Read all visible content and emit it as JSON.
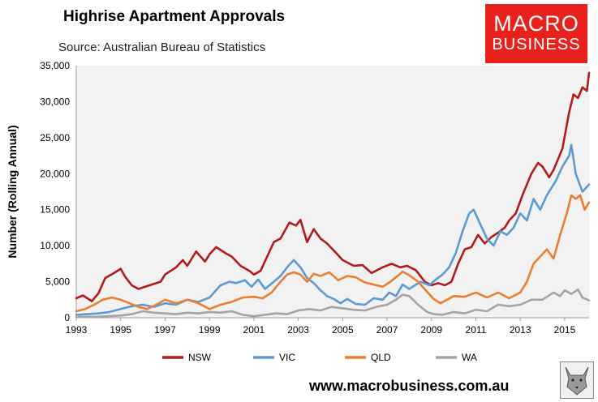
{
  "header": {
    "title": "Highrise Apartment Approvals",
    "subtitle": "Source: Australian Bureau of Statistics"
  },
  "logo": {
    "line1": "MACRO",
    "line2": "BUSINESS"
  },
  "footer": {
    "url": "www.macrobusiness.com.au"
  },
  "colors": {
    "NSW": "#b21a1c",
    "VIC": "#5b9bd5",
    "QLD": "#ed7d31",
    "WA": "#a5a5a5",
    "plot_bg": "#f2f2f2"
  },
  "chart_data": {
    "type": "line",
    "title": "Highrise Apartment Approvals",
    "subtitle": "Source: Australian Bureau of Statistics",
    "ylabel": "Number (Rolling Annual)",
    "xlabel": "",
    "xlim": [
      1993,
      2016.1
    ],
    "ylim": [
      0,
      35000
    ],
    "x_ticks": [
      "1993",
      "1995",
      "1997",
      "1999",
      "2001",
      "2003",
      "2005",
      "2007",
      "2009",
      "2011",
      "2013",
      "2015"
    ],
    "y_ticks": [
      "0",
      "5,000",
      "10,000",
      "15,000",
      "20,000",
      "25,000",
      "30,000",
      "35,000"
    ],
    "grid": false,
    "legend_position": "bottom",
    "series": [
      {
        "name": "NSW",
        "points": [
          [
            1993.0,
            2700
          ],
          [
            1993.3,
            3100
          ],
          [
            1993.7,
            2300
          ],
          [
            1994.0,
            3400
          ],
          [
            1994.3,
            5500
          ],
          [
            1994.7,
            6200
          ],
          [
            1995.0,
            6800
          ],
          [
            1995.2,
            5700
          ],
          [
            1995.5,
            4500
          ],
          [
            1995.8,
            4000
          ],
          [
            1996.3,
            4500
          ],
          [
            1996.8,
            5000
          ],
          [
            1997.0,
            6000
          ],
          [
            1997.5,
            7000
          ],
          [
            1997.8,
            8000
          ],
          [
            1998.0,
            7200
          ],
          [
            1998.4,
            9200
          ],
          [
            1998.8,
            7800
          ],
          [
            1999.0,
            8800
          ],
          [
            1999.3,
            9800
          ],
          [
            1999.7,
            9000
          ],
          [
            2000.0,
            8500
          ],
          [
            2000.4,
            7200
          ],
          [
            2000.8,
            6500
          ],
          [
            2001.0,
            6000
          ],
          [
            2001.3,
            6500
          ],
          [
            2001.6,
            8500
          ],
          [
            2001.9,
            10500
          ],
          [
            2002.2,
            11000
          ],
          [
            2002.6,
            13200
          ],
          [
            2002.9,
            12800
          ],
          [
            2003.1,
            13600
          ],
          [
            2003.4,
            10500
          ],
          [
            2003.7,
            12300
          ],
          [
            2004.0,
            11000
          ],
          [
            2004.3,
            10300
          ],
          [
            2004.7,
            9000
          ],
          [
            2005.0,
            8000
          ],
          [
            2005.5,
            7200
          ],
          [
            2005.9,
            7300
          ],
          [
            2006.3,
            6200
          ],
          [
            2006.8,
            7000
          ],
          [
            2007.2,
            7500
          ],
          [
            2007.6,
            7000
          ],
          [
            2007.9,
            7200
          ],
          [
            2008.3,
            6600
          ],
          [
            2008.7,
            5000
          ],
          [
            2009.0,
            4500
          ],
          [
            2009.3,
            4800
          ],
          [
            2009.6,
            4500
          ],
          [
            2009.9,
            5000
          ],
          [
            2010.2,
            7500
          ],
          [
            2010.5,
            9500
          ],
          [
            2010.8,
            9800
          ],
          [
            2011.1,
            11500
          ],
          [
            2011.4,
            10300
          ],
          [
            2011.7,
            11200
          ],
          [
            2012.0,
            11800
          ],
          [
            2012.3,
            12500
          ],
          [
            2012.5,
            13500
          ],
          [
            2012.8,
            14500
          ],
          [
            2013.1,
            17000
          ],
          [
            2013.5,
            20000
          ],
          [
            2013.8,
            21500
          ],
          [
            2014.0,
            21000
          ],
          [
            2014.3,
            19500
          ],
          [
            2014.5,
            20500
          ],
          [
            2014.9,
            23500
          ],
          [
            2015.2,
            28500
          ],
          [
            2015.4,
            31000
          ],
          [
            2015.6,
            30500
          ],
          [
            2015.8,
            32000
          ],
          [
            2016.0,
            31500
          ],
          [
            2016.1,
            34000
          ]
        ]
      },
      {
        "name": "VIC",
        "points": [
          [
            1993.0,
            400
          ],
          [
            1993.5,
            500
          ],
          [
            1994.0,
            600
          ],
          [
            1994.5,
            800
          ],
          [
            1995.0,
            1200
          ],
          [
            1995.5,
            1600
          ],
          [
            1996.0,
            1800
          ],
          [
            1996.5,
            1500
          ],
          [
            1997.0,
            2000
          ],
          [
            1997.5,
            1800
          ],
          [
            1998.0,
            2500
          ],
          [
            1998.5,
            2200
          ],
          [
            1999.0,
            2800
          ],
          [
            1999.5,
            4500
          ],
          [
            1999.9,
            5000
          ],
          [
            2000.2,
            4800
          ],
          [
            2000.6,
            5200
          ],
          [
            2000.9,
            4300
          ],
          [
            2001.2,
            5300
          ],
          [
            2001.5,
            4000
          ],
          [
            2001.9,
            5000
          ],
          [
            2002.2,
            5800
          ],
          [
            2002.5,
            7000
          ],
          [
            2002.8,
            8000
          ],
          [
            2003.1,
            7000
          ],
          [
            2003.4,
            5500
          ],
          [
            2003.7,
            4800
          ],
          [
            2004.0,
            3800
          ],
          [
            2004.3,
            3000
          ],
          [
            2004.6,
            2600
          ],
          [
            2004.9,
            2000
          ],
          [
            2005.2,
            2600
          ],
          [
            2005.6,
            1900
          ],
          [
            2006.0,
            1800
          ],
          [
            2006.4,
            2700
          ],
          [
            2006.8,
            2500
          ],
          [
            2007.1,
            3500
          ],
          [
            2007.4,
            3000
          ],
          [
            2007.7,
            4600
          ],
          [
            2008.0,
            4000
          ],
          [
            2008.5,
            5000
          ],
          [
            2008.9,
            4500
          ],
          [
            2009.2,
            5300
          ],
          [
            2009.5,
            6000
          ],
          [
            2009.8,
            7000
          ],
          [
            2010.1,
            9000
          ],
          [
            2010.4,
            12000
          ],
          [
            2010.7,
            14500
          ],
          [
            2010.9,
            15000
          ],
          [
            2011.2,
            13000
          ],
          [
            2011.5,
            11000
          ],
          [
            2011.8,
            10000
          ],
          [
            2012.1,
            12000
          ],
          [
            2012.4,
            11500
          ],
          [
            2012.7,
            12500
          ],
          [
            2013.0,
            14500
          ],
          [
            2013.3,
            13500
          ],
          [
            2013.6,
            16500
          ],
          [
            2013.9,
            15000
          ],
          [
            2014.2,
            17000
          ],
          [
            2014.6,
            19000
          ],
          [
            2014.9,
            21000
          ],
          [
            2015.2,
            22500
          ],
          [
            2015.3,
            24000
          ],
          [
            2015.5,
            20000
          ],
          [
            2015.8,
            17500
          ],
          [
            2016.1,
            18500
          ]
        ]
      },
      {
        "name": "QLD",
        "points": [
          [
            1993.0,
            900
          ],
          [
            1993.4,
            1200
          ],
          [
            1993.8,
            1800
          ],
          [
            1994.2,
            2500
          ],
          [
            1994.6,
            2800
          ],
          [
            1995.0,
            2500
          ],
          [
            1995.4,
            2000
          ],
          [
            1995.8,
            1500
          ],
          [
            1996.2,
            1200
          ],
          [
            1996.6,
            1800
          ],
          [
            1997.0,
            2500
          ],
          [
            1997.5,
            2000
          ],
          [
            1998.0,
            2500
          ],
          [
            1998.5,
            2000
          ],
          [
            1999.0,
            1200
          ],
          [
            1999.5,
            1800
          ],
          [
            2000.0,
            2200
          ],
          [
            2000.5,
            2800
          ],
          [
            2001.0,
            2900
          ],
          [
            2001.4,
            2700
          ],
          [
            2001.8,
            3500
          ],
          [
            2002.2,
            5000
          ],
          [
            2002.5,
            6000
          ],
          [
            2002.8,
            6300
          ],
          [
            2003.1,
            6000
          ],
          [
            2003.4,
            5000
          ],
          [
            2003.7,
            6100
          ],
          [
            2004.0,
            5800
          ],
          [
            2004.4,
            6300
          ],
          [
            2004.8,
            5200
          ],
          [
            2005.2,
            5800
          ],
          [
            2005.6,
            5600
          ],
          [
            2006.0,
            4900
          ],
          [
            2006.4,
            4600
          ],
          [
            2006.8,
            4300
          ],
          [
            2007.1,
            4900
          ],
          [
            2007.4,
            5600
          ],
          [
            2007.7,
            6400
          ],
          [
            2008.0,
            5900
          ],
          [
            2008.4,
            5000
          ],
          [
            2008.8,
            3600
          ],
          [
            2009.1,
            2600
          ],
          [
            2009.4,
            2000
          ],
          [
            2009.7,
            2500
          ],
          [
            2010.0,
            3000
          ],
          [
            2010.5,
            2900
          ],
          [
            2011.0,
            3500
          ],
          [
            2011.5,
            2800
          ],
          [
            2012.0,
            3500
          ],
          [
            2012.5,
            2700
          ],
          [
            2013.0,
            3500
          ],
          [
            2013.3,
            5000
          ],
          [
            2013.6,
            7500
          ],
          [
            2013.9,
            8500
          ],
          [
            2014.2,
            9500
          ],
          [
            2014.5,
            8200
          ],
          [
            2014.8,
            11500
          ],
          [
            2015.1,
            14500
          ],
          [
            2015.3,
            17000
          ],
          [
            2015.5,
            16500
          ],
          [
            2015.7,
            17000
          ],
          [
            2015.9,
            15000
          ],
          [
            2016.1,
            16000
          ]
        ]
      },
      {
        "name": "WA",
        "points": [
          [
            1993.0,
            100
          ],
          [
            1994.0,
            150
          ],
          [
            1995.0,
            300
          ],
          [
            1995.5,
            500
          ],
          [
            1996.0,
            900
          ],
          [
            1996.5,
            700
          ],
          [
            1997.0,
            600
          ],
          [
            1997.5,
            500
          ],
          [
            1998.0,
            700
          ],
          [
            1998.5,
            600
          ],
          [
            1999.0,
            800
          ],
          [
            1999.5,
            700
          ],
          [
            2000.0,
            900
          ],
          [
            2000.5,
            400
          ],
          [
            2001.0,
            200
          ],
          [
            2001.5,
            400
          ],
          [
            2002.0,
            600
          ],
          [
            2002.5,
            500
          ],
          [
            2003.0,
            1000
          ],
          [
            2003.5,
            1200
          ],
          [
            2004.0,
            1000
          ],
          [
            2004.5,
            1500
          ],
          [
            2005.0,
            1300
          ],
          [
            2005.5,
            1100
          ],
          [
            2006.0,
            1000
          ],
          [
            2006.5,
            1500
          ],
          [
            2007.0,
            1800
          ],
          [
            2007.4,
            2500
          ],
          [
            2007.7,
            3200
          ],
          [
            2008.0,
            3000
          ],
          [
            2008.4,
            1800
          ],
          [
            2008.8,
            800
          ],
          [
            2009.1,
            500
          ],
          [
            2009.5,
            400
          ],
          [
            2010.0,
            800
          ],
          [
            2010.5,
            600
          ],
          [
            2011.0,
            1100
          ],
          [
            2011.5,
            900
          ],
          [
            2012.0,
            1800
          ],
          [
            2012.5,
            1600
          ],
          [
            2013.0,
            1800
          ],
          [
            2013.5,
            2500
          ],
          [
            2014.0,
            2500
          ],
          [
            2014.5,
            3500
          ],
          [
            2014.8,
            3000
          ],
          [
            2015.0,
            3800
          ],
          [
            2015.3,
            3300
          ],
          [
            2015.6,
            3900
          ],
          [
            2015.8,
            2800
          ],
          [
            2016.1,
            2400
          ]
        ]
      }
    ]
  }
}
